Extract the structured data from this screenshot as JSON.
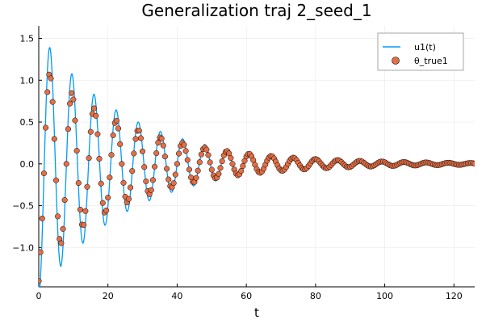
{
  "chart_data": {
    "type": "scatter",
    "title": "Generalization traj 2_seed_1",
    "xlabel": "t",
    "ylabel": "",
    "xlim": [
      0,
      126
    ],
    "ylim": [
      -1.47,
      1.65
    ],
    "xticks": [
      0,
      20,
      40,
      60,
      80,
      100,
      120
    ],
    "yticks": [
      -1.0,
      -0.5,
      0.0,
      0.5,
      1.0,
      1.5
    ],
    "x_tick_labels": [
      "0",
      "20",
      "40",
      "60",
      "80",
      "100",
      "120"
    ],
    "y_tick_labels": [
      "−1.0",
      "−0.5",
      "0.0",
      "0.5",
      "1.0",
      "1.5"
    ],
    "grid": true,
    "legend_position": "top-right",
    "series": [
      {
        "name": "u1(t)",
        "kind": "line",
        "color": "#009af9",
        "model": {
          "form": "damped_cosine",
          "y0": -1.35,
          "amplitude": 1.58,
          "decay": 0.04,
          "period": 6.4,
          "phase": 3.14159,
          "t_start": 0,
          "t_end": 126
        }
      },
      {
        "name": "θ_true1",
        "kind": "scatter",
        "color": "#e26f46",
        "marker_edge": "#000000",
        "model": {
          "form": "damped_cosine",
          "y0": -1.4,
          "amplitude": 1.22,
          "decay": 0.038,
          "period": 6.4,
          "phase": 3.14159,
          "t_start": 0,
          "t_end": 126,
          "sample_step": 0.5
        }
      }
    ]
  },
  "legend": {
    "line_label": "u1(t)",
    "scatter_label": "θ_true1"
  }
}
